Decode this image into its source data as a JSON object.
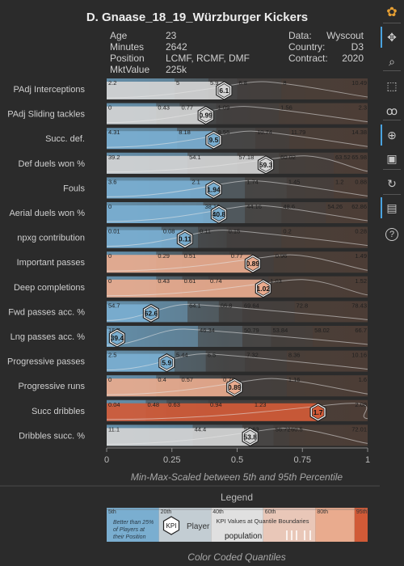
{
  "title": "D. Gnaase_18_19_Würzburger Kickers",
  "player_info": {
    "left": [
      {
        "label": "Age",
        "value": "23"
      },
      {
        "label": "Minutes",
        "value": "2642"
      },
      {
        "label": "Position",
        "value": "LCMF, RCMF, DMF"
      },
      {
        "label": "MktValue",
        "value": "225k"
      }
    ],
    "right": [
      {
        "label": "Data:",
        "value": "Wyscout"
      },
      {
        "label": "Country:",
        "value": "D3"
      },
      {
        "label": "Contract:",
        "value": "2020"
      }
    ]
  },
  "colors": {
    "band_blue": "#7aaed0",
    "band_lightgray": "#d4d4d4",
    "band_salmon": "#e9ab8e",
    "band_red": "#d15a37",
    "band_dark": "#4a4a4a",
    "band_brown": "#5a4438",
    "band_bg_left": "#476579",
    "band_bg_right": "#4a3b33",
    "accent": "#4aa3df"
  },
  "chart_data": {
    "type": "bar",
    "xlabel": "Min-Max-Scaled between 5th and 95th Percentile",
    "xlim": [
      0,
      1
    ],
    "xticks": [
      "0",
      "0.25",
      "0.5",
      "0.75",
      "1"
    ],
    "xtick_values": [
      0,
      0.25,
      0.5,
      0.75,
      1
    ],
    "metrics": [
      {
        "name": "PAdj Interceptions",
        "value": "6.1",
        "scaled": 0.45,
        "bar_color": "lightgray",
        "ticks": [
          [
            0,
            "2.2"
          ],
          [
            0.26,
            "5"
          ],
          [
            0.39,
            "5.9"
          ],
          [
            0.5,
            "6.8"
          ],
          [
            0.67,
            "8"
          ],
          [
            1,
            "10.49"
          ]
        ]
      },
      {
        "name": "PAdj Sliding tackles",
        "value": "0.99",
        "scaled": 0.38,
        "bar_color": "lightgray",
        "ticks": [
          [
            0,
            "0"
          ],
          [
            0.19,
            "0.43"
          ],
          [
            0.28,
            "0.77"
          ],
          [
            0.42,
            "1.09"
          ],
          [
            0.66,
            "1.56"
          ],
          [
            1,
            "2.3"
          ]
        ]
      },
      {
        "name": "Succ. def.",
        "value": "9.5",
        "scaled": 0.41,
        "bar_color": "blue",
        "ticks": [
          [
            0,
            "4.31"
          ],
          [
            0.27,
            "8.18"
          ],
          [
            0.42,
            "9.55"
          ],
          [
            0.57,
            "10.74"
          ],
          [
            0.7,
            "11.79"
          ],
          [
            1,
            "14.38"
          ]
        ]
      },
      {
        "name": "Def duels won %",
        "value": "59.3",
        "scaled": 0.61,
        "bar_color": "lightgray",
        "ticks": [
          [
            0,
            "39.2"
          ],
          [
            0.31,
            "54.1"
          ],
          [
            0.5,
            "57.18"
          ],
          [
            0.66,
            "60.02"
          ],
          [
            0.87,
            "63.52"
          ],
          [
            1,
            "65.98"
          ]
        ]
      },
      {
        "name": "Fouls",
        "value": "1.94",
        "scaled": 0.41,
        "bar_color": "blue",
        "ticks": [
          [
            0,
            "3.6"
          ],
          [
            0.32,
            "2.1"
          ],
          [
            0.53,
            "1.74"
          ],
          [
            0.69,
            "1.45"
          ],
          [
            0.87,
            "1.2"
          ],
          [
            1,
            "0.88"
          ]
        ]
      },
      {
        "name": "Aerial duels won %",
        "value": "40.8",
        "scaled": 0.43,
        "bar_color": "blue",
        "ticks": [
          [
            0,
            "0"
          ],
          [
            0.37,
            "38.16"
          ],
          [
            0.53,
            "44.16"
          ],
          [
            0.67,
            "48.6"
          ],
          [
            0.84,
            "54.26"
          ],
          [
            1,
            "62.86"
          ]
        ]
      },
      {
        "name": "npxg contribution",
        "value": "0.11",
        "scaled": 0.3,
        "bar_color": "blue",
        "ticks": [
          [
            0,
            "0.01"
          ],
          [
            0.21,
            "0.08"
          ],
          [
            0.35,
            "0.11"
          ],
          [
            0.46,
            "0.15"
          ],
          [
            0.67,
            "0.2"
          ],
          [
            1,
            "0.28"
          ]
        ]
      },
      {
        "name": "Important passes",
        "value": "0.89",
        "scaled": 0.56,
        "bar_color": "salmon",
        "ticks": [
          [
            0,
            "0"
          ],
          [
            0.19,
            "0.29"
          ],
          [
            0.29,
            "0.51"
          ],
          [
            0.47,
            "0.77"
          ],
          [
            0.64,
            "0.96"
          ],
          [
            1,
            "1.49"
          ]
        ]
      },
      {
        "name": "Deep completions",
        "value": "1.02",
        "scaled": 0.6,
        "bar_color": "salmon",
        "ticks": [
          [
            0,
            "0"
          ],
          [
            0.19,
            "0.43"
          ],
          [
            0.29,
            "0.61"
          ],
          [
            0.39,
            "0.74"
          ],
          [
            0.62,
            "1.03"
          ],
          [
            1,
            "1.52"
          ]
        ]
      },
      {
        "name": "Fwd passes acc. %",
        "value": "62.6",
        "scaled": 0.17,
        "bar_color": "blue",
        "ticks": [
          [
            0,
            "54.7"
          ],
          [
            0.31,
            "64.1"
          ],
          [
            0.43,
            "66.8"
          ],
          [
            0.52,
            "69.64"
          ],
          [
            0.72,
            "72.8"
          ],
          [
            1,
            "78.43"
          ]
        ]
      },
      {
        "name": "Lng passes acc. %",
        "value": "39.4",
        "scaled": 0.04,
        "bar_color": "blue",
        "ticks": [
          [
            0,
            "16.7"
          ],
          [
            0.35,
            "46.34"
          ],
          [
            0.52,
            "50.79"
          ],
          [
            0.63,
            "53.84"
          ],
          [
            0.79,
            "58.02"
          ],
          [
            1,
            "66.7"
          ]
        ]
      },
      {
        "name": "Progressive passes",
        "value": "5.9",
        "scaled": 0.23,
        "bar_color": "blue",
        "ticks": [
          [
            0,
            "2.5"
          ],
          [
            0.26,
            "5.44"
          ],
          [
            0.38,
            "6.5"
          ],
          [
            0.53,
            "7.32"
          ],
          [
            0.69,
            "8.36"
          ],
          [
            1,
            "10.16"
          ]
        ]
      },
      {
        "name": "Progressive runs",
        "value": "0.89",
        "scaled": 0.49,
        "bar_color": "salmon",
        "ticks": [
          [
            0,
            "0"
          ],
          [
            0.19,
            "0.4"
          ],
          [
            0.28,
            "0.57"
          ],
          [
            0.44,
            "0.78"
          ],
          [
            0.69,
            "1.16"
          ],
          [
            1,
            "1.6"
          ]
        ]
      },
      {
        "name": "Succ dribbles",
        "value": "1.7",
        "scaled": 0.81,
        "bar_color": "red",
        "ticks": [
          [
            0,
            "0.04"
          ],
          [
            0.15,
            "0.48"
          ],
          [
            0.23,
            "0.63"
          ],
          [
            0.39,
            "0.94"
          ],
          [
            0.56,
            "1.23"
          ],
          [
            1,
            "2.08"
          ]
        ]
      },
      {
        "name": "Dribbles succ. %",
        "value": "53.8",
        "scaled": 0.55,
        "bar_color": "lightgray",
        "ticks": [
          [
            0,
            "11.1"
          ],
          [
            0.33,
            "44.4"
          ],
          [
            0.52,
            "51.63"
          ],
          [
            0.64,
            "56.72"
          ],
          [
            0.7,
            "60.5"
          ],
          [
            1,
            "72.01"
          ]
        ]
      }
    ]
  },
  "legend": {
    "title": "Legend",
    "percentiles": [
      "5th",
      "20th",
      "40th",
      "60th",
      "80th",
      "95th"
    ],
    "note": "Better than 25% of Players at their Position",
    "kpi_label": "KPI",
    "player_label": "Player",
    "quantile_note": "KPI Values at Quantile Boundaries",
    "population_label": "population",
    "caption": "Color Coded Quantiles"
  },
  "toolbar": {
    "items": [
      {
        "name": "bokeh-logo-icon",
        "active": false
      },
      {
        "name": "pan-icon",
        "active": true
      },
      {
        "name": "zoom-icon",
        "active": false
      },
      {
        "name": "box-select-icon",
        "active": false
      },
      {
        "name": "lasso-icon",
        "active": false
      },
      {
        "name": "crosshair-icon",
        "active": true
      },
      {
        "name": "save-icon",
        "active": false
      },
      {
        "name": "reset-icon",
        "active": false
      },
      {
        "name": "hover-icon",
        "active": true
      },
      {
        "name": "help-icon",
        "active": false
      }
    ]
  }
}
